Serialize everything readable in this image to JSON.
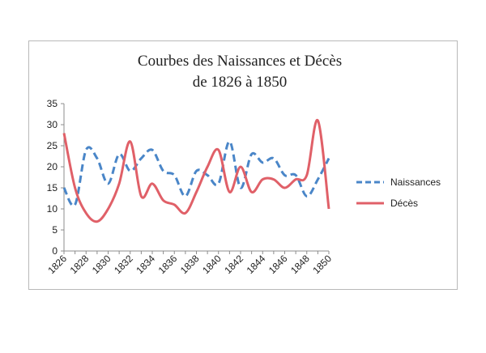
{
  "chart_data": {
    "type": "line",
    "title_lines": [
      "Courbes des Naissances et Décès",
      "de 1826 à 1850"
    ],
    "xlabel": "",
    "ylabel": "",
    "ylim": [
      0,
      35
    ],
    "y_ticks": [
      "0",
      "5",
      "10",
      "15",
      "20",
      "25",
      "30",
      "35"
    ],
    "x_ticks": [
      "1826",
      "1828",
      "1830",
      "1832",
      "1834",
      "1836",
      "1838",
      "1840",
      "1842",
      "1844",
      "1846",
      "1848",
      "1850"
    ],
    "x": [
      1826,
      1827,
      1828,
      1829,
      1830,
      1831,
      1832,
      1833,
      1834,
      1835,
      1836,
      1837,
      1838,
      1839,
      1840,
      1841,
      1842,
      1843,
      1844,
      1845,
      1846,
      1847,
      1848,
      1849,
      1850
    ],
    "grid": false,
    "legend_position": "right",
    "series": [
      {
        "name": "Naissances",
        "color": "#4a86c8",
        "style": "dashed",
        "values": [
          15,
          11,
          24,
          22,
          16,
          23,
          19,
          22,
          24,
          19,
          18,
          13,
          19,
          18,
          16,
          26,
          15,
          23,
          21,
          22,
          18,
          18,
          13,
          17,
          22
        ]
      },
      {
        "name": "Décès",
        "color": "#e06068",
        "style": "solid",
        "values": [
          28,
          15,
          9,
          7,
          10,
          16,
          26,
          13,
          16,
          12,
          11,
          9,
          14,
          20,
          24,
          14,
          20,
          14,
          17,
          17,
          15,
          17,
          18,
          31,
          10
        ]
      }
    ]
  }
}
